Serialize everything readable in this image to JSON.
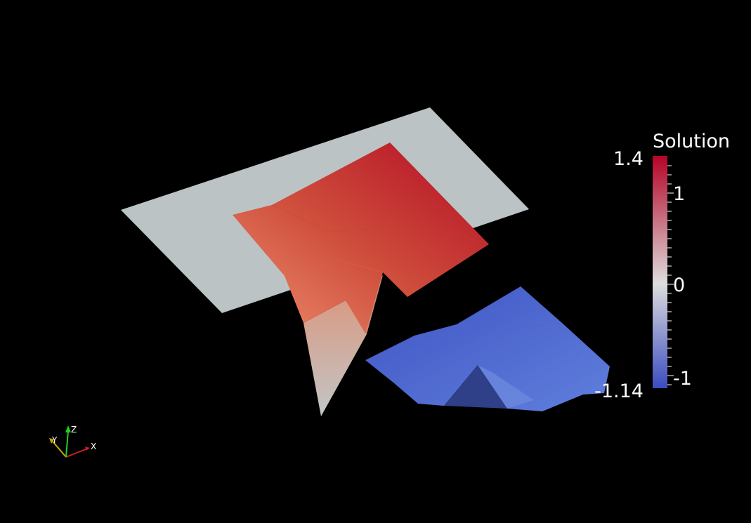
{
  "scalar_bar": {
    "title": "Solution",
    "max_label": "1.4",
    "min_label": "-1.14",
    "ticks": [
      "1",
      "0",
      "-1"
    ],
    "range": [
      -1.14,
      1.4
    ],
    "colormap": [
      "#3b4cc0",
      "#dddddd",
      "#b40426"
    ]
  },
  "orientation_axes": {
    "x_label": "X",
    "y_label": "Y",
    "z_label": "Z",
    "x_color": "#cc2222",
    "y_color": "#c9a800",
    "z_color": "#22cc22"
  },
  "scene": {
    "background": "#000000",
    "plane_color": "#bcc3c4"
  }
}
